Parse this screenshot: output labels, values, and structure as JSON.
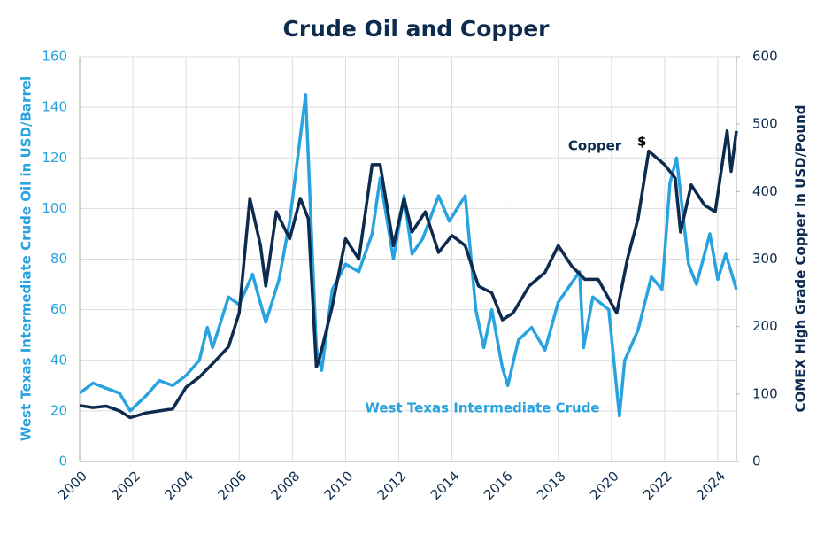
{
  "chart_data": {
    "type": "line",
    "title": "Crude Oil and Copper",
    "ylabel": "West Texas Intermediate Crude Oil in USD/Barrel",
    "y2label": "COMEX High Grade Copper in USD/Pound",
    "annotations": [
      "$"
    ],
    "xlim": [
      2000,
      2024.7
    ],
    "xticks": [
      2000,
      2002,
      2004,
      2006,
      2008,
      2010,
      2012,
      2014,
      2016,
      2018,
      2020,
      2022,
      2024
    ],
    "ylim": [
      0,
      160
    ],
    "yticks": [
      0,
      20,
      40,
      60,
      80,
      100,
      120,
      140,
      160
    ],
    "y2lim": [
      0,
      600
    ],
    "y2ticks": [
      0,
      100,
      200,
      300,
      400,
      500,
      600
    ],
    "grid": true,
    "series": [
      {
        "name": "West Texas Intermediate Crude",
        "color": "#29a3e0",
        "x": [
          2000,
          2000.5,
          2001,
          2001.5,
          2001.9,
          2002.5,
          2003,
          2003.5,
          2004,
          2004.5,
          2004.8,
          2005,
          2005.6,
          2006,
          2006.5,
          2007,
          2007.5,
          2007.9,
          2008.5,
          2008.9,
          2009.1,
          2009.5,
          2010,
          2010.5,
          2011,
          2011.3,
          2011.8,
          2012.2,
          2012.5,
          2012.9,
          2013.5,
          2013.9,
          2014.5,
          2014.9,
          2015.2,
          2015.5,
          2015.9,
          2016.1,
          2016.5,
          2017,
          2017.5,
          2018,
          2018.8,
          2018.95,
          2019.3,
          2019.9,
          2020.3,
          2020.5,
          2021,
          2021.5,
          2021.9,
          2022.2,
          2022.45,
          2022.9,
          2023.2,
          2023.7,
          2024,
          2024.3,
          2024.7
        ],
        "values": [
          27,
          31,
          29,
          27,
          20,
          26,
          32,
          30,
          34,
          40,
          53,
          45,
          65,
          62,
          74,
          55,
          72,
          95,
          145,
          45,
          36,
          68,
          78,
          75,
          90,
          112,
          80,
          105,
          82,
          88,
          105,
          95,
          105,
          60,
          45,
          60,
          37,
          30,
          48,
          53,
          44,
          63,
          75,
          45,
          65,
          60,
          18,
          40,
          52,
          73,
          68,
          110,
          120,
          78,
          70,
          90,
          72,
          82,
          68
        ]
      },
      {
        "name": "Copper",
        "color": "#0d2b4e",
        "axis": "y2",
        "x": [
          2000,
          2000.5,
          2001,
          2001.5,
          2001.9,
          2002.5,
          2003,
          2003.5,
          2004,
          2004.5,
          2005,
          2005.6,
          2006,
          2006.4,
          2006.8,
          2007,
          2007.4,
          2007.9,
          2008.3,
          2008.6,
          2008.9,
          2009,
          2009.5,
          2010,
          2010.5,
          2011,
          2011.3,
          2011.8,
          2012.2,
          2012.5,
          2013,
          2013.5,
          2014,
          2014.5,
          2015,
          2015.5,
          2015.9,
          2016.3,
          2016.9,
          2017.5,
          2018,
          2018.5,
          2019,
          2019.5,
          2020.2,
          2020.6,
          2021,
          2021.4,
          2022,
          2022.4,
          2022.6,
          2023,
          2023.5,
          2023.9,
          2024.35,
          2024.5,
          2024.7
        ],
        "values": [
          83,
          80,
          82,
          75,
          65,
          72,
          75,
          78,
          110,
          125,
          145,
          170,
          220,
          390,
          320,
          260,
          370,
          330,
          390,
          360,
          140,
          150,
          230,
          330,
          300,
          440,
          440,
          320,
          390,
          340,
          370,
          310,
          335,
          320,
          260,
          250,
          210,
          220,
          260,
          280,
          320,
          290,
          270,
          270,
          220,
          300,
          360,
          460,
          440,
          420,
          340,
          410,
          380,
          370,
          490,
          430,
          490
        ]
      }
    ]
  }
}
